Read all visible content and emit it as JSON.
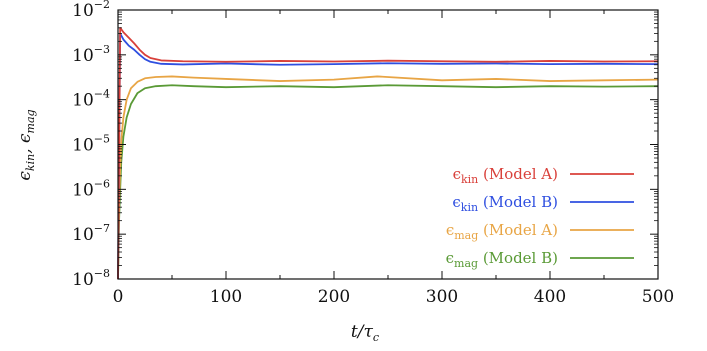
{
  "chart_data": {
    "type": "line",
    "xlabel": "t/τ",
    "xlabel_sub": "c",
    "ylabel_parts": [
      "ϵ",
      "kin",
      ",  ϵ",
      "mag"
    ],
    "xlim": [
      0,
      500
    ],
    "ylim": [
      1e-08,
      0.01
    ],
    "y_scale": "log",
    "x_ticks": [
      0,
      100,
      200,
      300,
      400,
      500
    ],
    "y_ticks": [
      {
        "base": "10",
        "exp": "−2",
        "value": 0.01
      },
      {
        "base": "10",
        "exp": "−3",
        "value": 0.001
      },
      {
        "base": "10",
        "exp": "−4",
        "value": 0.0001
      },
      {
        "base": "10",
        "exp": "−5",
        "value": 1e-05
      },
      {
        "base": "10",
        "exp": "−6",
        "value": 1e-06
      },
      {
        "base": "10",
        "exp": "−7",
        "value": 1e-07
      },
      {
        "base": "10",
        "exp": "−8",
        "value": 1e-08
      }
    ],
    "grid": false,
    "legend_position": "bottom-right",
    "series": [
      {
        "name": "ϵkin (Model A)",
        "label_symbol": "ϵ",
        "label_sub": "kin",
        "label_rest": " (Model A)",
        "color": "#d9403a",
        "x": [
          0,
          2,
          5,
          10,
          15,
          20,
          25,
          30,
          40,
          60,
          100,
          150,
          200,
          250,
          300,
          350,
          400,
          450,
          500
        ],
        "y": [
          1e-08,
          0.004,
          0.0032,
          0.0024,
          0.0018,
          0.0013,
          0.001,
          0.00085,
          0.00075,
          0.00072,
          0.0007,
          0.00073,
          0.00071,
          0.00074,
          0.00072,
          0.0007,
          0.00073,
          0.00071,
          0.00072
        ]
      },
      {
        "name": "ϵkin (Model B)",
        "label_symbol": "ϵ",
        "label_sub": "kin",
        "label_rest": " (Model B)",
        "color": "#2f4fe0",
        "x": [
          0,
          2,
          5,
          10,
          15,
          20,
          25,
          30,
          40,
          60,
          100,
          150,
          200,
          250,
          300,
          350,
          400,
          450,
          500
        ],
        "y": [
          1e-08,
          0.003,
          0.0022,
          0.0016,
          0.0013,
          0.001,
          0.0008,
          0.0007,
          0.00063,
          0.00061,
          0.00064,
          0.0006,
          0.00062,
          0.00065,
          0.00063,
          0.00064,
          0.00062,
          0.00063,
          0.00062
        ]
      },
      {
        "name": "ϵmag (Model A)",
        "label_symbol": "ϵ",
        "label_sub": "mag",
        "label_rest": " (Model A)",
        "color": "#e8a545",
        "x": [
          0,
          1,
          2,
          3,
          5,
          8,
          12,
          18,
          25,
          35,
          50,
          70,
          100,
          150,
          200,
          240,
          300,
          350,
          400,
          450,
          500
        ],
        "y": [
          1e-08,
          5e-07,
          3e-06,
          1.2e-05,
          4e-05,
          0.0001,
          0.00018,
          0.00025,
          0.0003,
          0.00032,
          0.00033,
          0.00031,
          0.00029,
          0.00026,
          0.00028,
          0.00033,
          0.00027,
          0.00029,
          0.00026,
          0.00027,
          0.00028
        ]
      },
      {
        "name": "ϵmag (Model B)",
        "label_symbol": "ϵ",
        "label_sub": "mag",
        "label_rest": " (Model B)",
        "color": "#5a9a36",
        "x": [
          0,
          1,
          2,
          3,
          5,
          8,
          12,
          18,
          25,
          35,
          50,
          70,
          100,
          150,
          200,
          250,
          300,
          350,
          400,
          450,
          500
        ],
        "y": [
          1e-08,
          2e-07,
          1e-06,
          4e-06,
          1.5e-05,
          4e-05,
          8e-05,
          0.00014,
          0.00018,
          0.0002,
          0.00021,
          0.0002,
          0.00019,
          0.0002,
          0.00019,
          0.00021,
          0.0002,
          0.00019,
          0.0002,
          0.000195,
          0.0002
        ]
      }
    ]
  }
}
